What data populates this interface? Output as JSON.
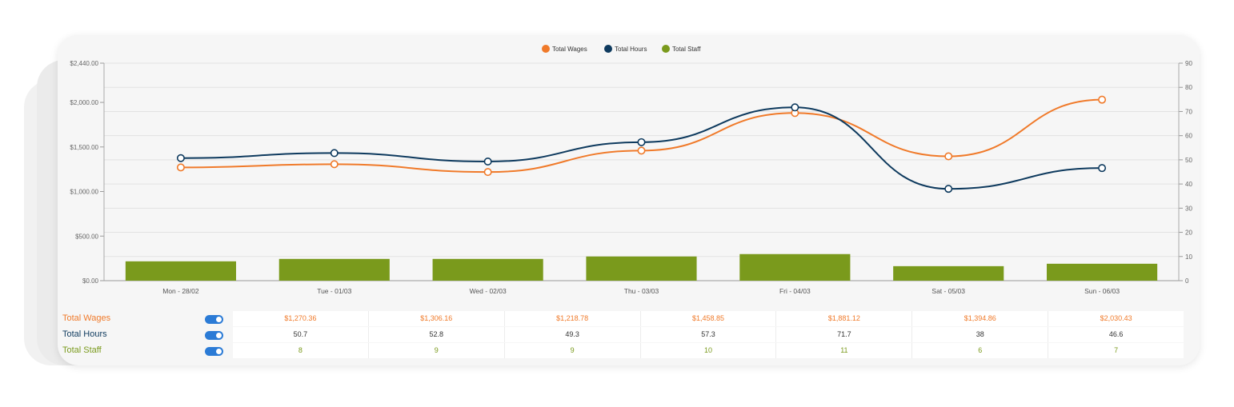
{
  "chart_data": {
    "type": "bar+line",
    "categories": [
      "Mon - 28/02",
      "Tue - 01/03",
      "Wed - 02/03",
      "Thu - 03/03",
      "Fri - 04/03",
      "Sat - 05/03",
      "Sun - 06/03"
    ],
    "series": [
      {
        "name": "Total Wages",
        "type": "line",
        "axis": "left",
        "color": "#f07a2a",
        "values": [
          1270.36,
          1306.16,
          1218.78,
          1458.85,
          1881.12,
          1394.86,
          2030.43
        ]
      },
      {
        "name": "Total Hours",
        "type": "line",
        "axis": "right",
        "color": "#0e3a5e",
        "values": [
          50.7,
          52.8,
          49.3,
          57.3,
          71.7,
          38,
          46.6
        ]
      },
      {
        "name": "Total Staff",
        "type": "bar",
        "axis": "right",
        "color": "#7a9a1c",
        "values": [
          8,
          9,
          9,
          10,
          11,
          6,
          7
        ]
      }
    ],
    "y_left": {
      "min": 0,
      "max": 2440,
      "ticks": [
        "$0.00",
        "$500.00",
        "$1,000.00",
        "$1,500.00",
        "$2,000.00",
        "$2,440.00"
      ],
      "tick_values": [
        0,
        500,
        1000,
        1500,
        2000,
        2440
      ]
    },
    "y_right": {
      "min": 0,
      "max": 90,
      "ticks": [
        "0",
        "10",
        "20",
        "30",
        "40",
        "50",
        "60",
        "70",
        "80",
        "90"
      ],
      "tick_values": [
        0,
        10,
        20,
        30,
        40,
        50,
        60,
        70,
        80,
        90
      ]
    },
    "legend_position": "top-center",
    "grid": true
  },
  "table": {
    "rows": [
      {
        "label": "Total Wages",
        "color": "#f07a2a",
        "cells": [
          "$1,270.36",
          "$1,306.16",
          "$1,218.78",
          "$1,458.85",
          "$1,881.12",
          "$1,394.86",
          "$2,030.43"
        ]
      },
      {
        "label": "Total Hours",
        "color": "#0e3a5e",
        "cells": [
          "50.7",
          "52.8",
          "49.3",
          "57.3",
          "71.7",
          "38",
          "46.6"
        ]
      },
      {
        "label": "Total Staff",
        "color": "#7a9a1c",
        "cells": [
          "8",
          "9",
          "9",
          "10",
          "11",
          "6",
          "7"
        ]
      }
    ]
  }
}
